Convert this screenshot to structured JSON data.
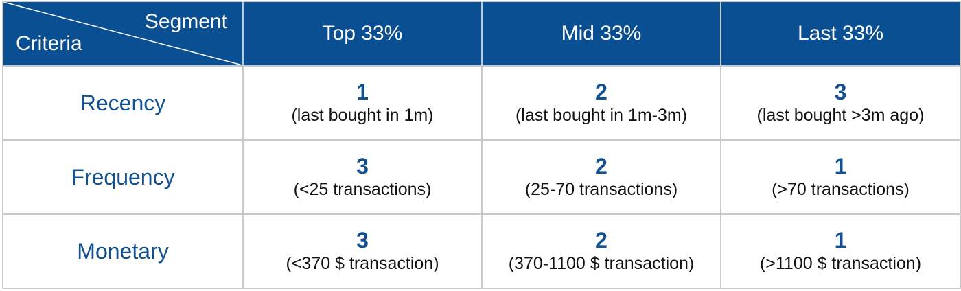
{
  "header": {
    "segment_label": "Segment",
    "criteria_label": "Criteria",
    "columns": [
      "Top 33%",
      "Mid 33%",
      "Last 33%"
    ]
  },
  "rows": [
    {
      "label": "Recency",
      "cells": [
        {
          "score": "1",
          "desc": "(last bought in 1m)"
        },
        {
          "score": "2",
          "desc": "(last bought in 1m-3m)"
        },
        {
          "score": "3",
          "desc": "(last bought >3m ago)"
        }
      ]
    },
    {
      "label": "Frequency",
      "cells": [
        {
          "score": "3",
          "desc": "(<25 transactions)"
        },
        {
          "score": "2",
          "desc": "(25-70 transactions)"
        },
        {
          "score": "1",
          "desc": "(>70 transactions)"
        }
      ]
    },
    {
      "label": "Monetary",
      "cells": [
        {
          "score": "3",
          "desc": "(<370 $ transaction)"
        },
        {
          "score": "2",
          "desc": "(370-1100 $ transaction)"
        },
        {
          "score": "1",
          "desc": "(>1100 $ transaction)"
        }
      ]
    }
  ],
  "colors": {
    "header_bg": "#0b4f93",
    "accent_text": "#12508f",
    "border": "#c9c9c9"
  }
}
